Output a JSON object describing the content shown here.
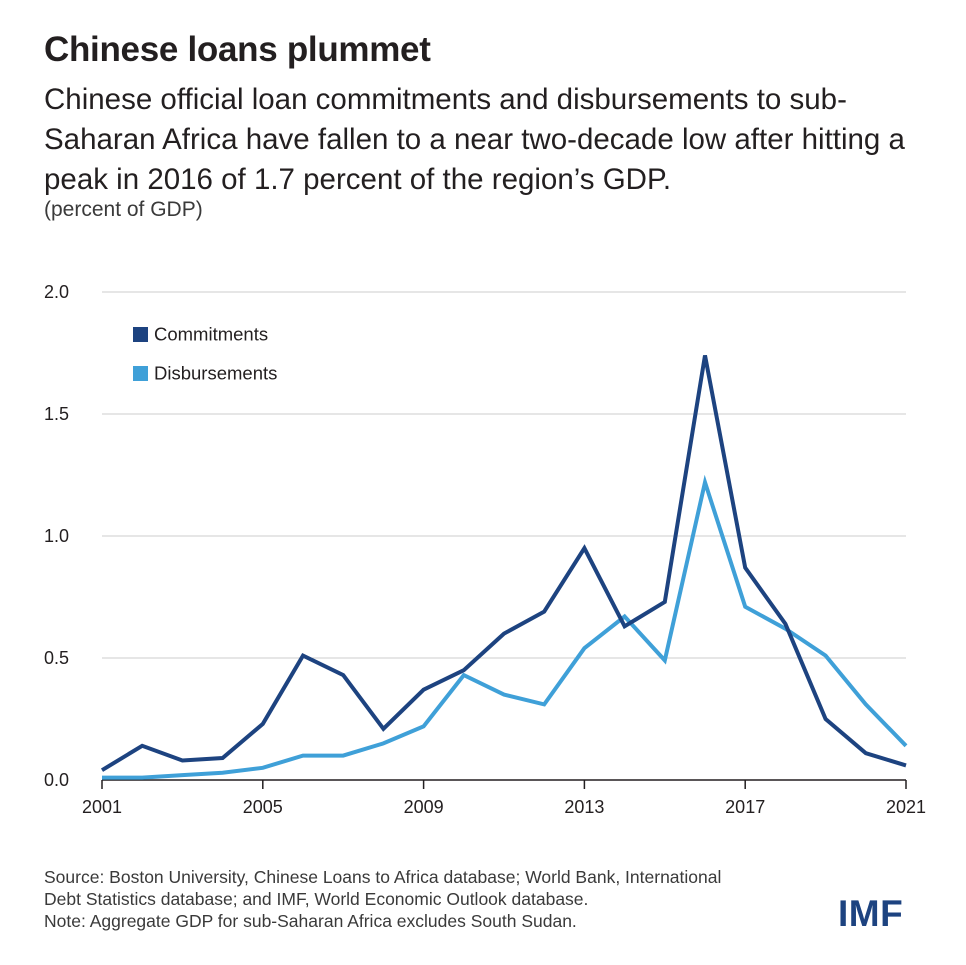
{
  "title": "Chinese loans plummet",
  "subtitle": "Chinese official loan commitments and disbursements to sub-Saharan Africa have fallen to a near two-decade low after hitting a peak in 2016 of 1.7 percent of the region’s GDP.",
  "units": "(percent of GDP)",
  "source": {
    "line1": "Source: Boston University, Chinese Loans to Africa database; World Bank, International",
    "line2": "Debt Statistics database; and IMF, World Economic Outlook database.",
    "line3": "Note: Aggregate GDP for sub-Saharan Africa excludes South Sudan."
  },
  "logo": "IMF",
  "colors": {
    "commitments": "#1d4380",
    "disbursements": "#3fa0d8",
    "grid": "#cccccc",
    "axis": "#231f20"
  },
  "chart_data": {
    "type": "line",
    "title": "Chinese loans plummet",
    "ylabel": "(percent of GDP)",
    "xlabel": "",
    "x": [
      2001,
      2002,
      2003,
      2004,
      2005,
      2006,
      2007,
      2008,
      2009,
      2010,
      2011,
      2012,
      2013,
      2014,
      2015,
      2016,
      2017,
      2018,
      2019,
      2020,
      2021
    ],
    "series": [
      {
        "name": "Commitments",
        "color": "#1d4380",
        "values": [
          0.04,
          0.14,
          0.08,
          0.09,
          0.23,
          0.51,
          0.43,
          0.21,
          0.37,
          0.45,
          0.6,
          0.69,
          0.95,
          0.63,
          0.73,
          1.74,
          0.87,
          0.64,
          0.25,
          0.11,
          0.06
        ]
      },
      {
        "name": "Disbursements",
        "color": "#3fa0d8",
        "values": [
          0.01,
          0.01,
          0.02,
          0.03,
          0.05,
          0.1,
          0.1,
          0.15,
          0.22,
          0.43,
          0.35,
          0.31,
          0.54,
          0.67,
          0.49,
          1.22,
          0.71,
          0.62,
          0.51,
          0.31,
          0.14
        ]
      }
    ],
    "xticks": [
      "2001",
      "2005",
      "2009",
      "2013",
      "2017",
      "2021"
    ],
    "yticks": [
      "0.0",
      "0.5",
      "1.0",
      "1.5",
      "2.0"
    ],
    "ylim": [
      0,
      2.0
    ],
    "xlim": [
      2001,
      2021
    ],
    "legend": "top-left",
    "grid": true
  }
}
